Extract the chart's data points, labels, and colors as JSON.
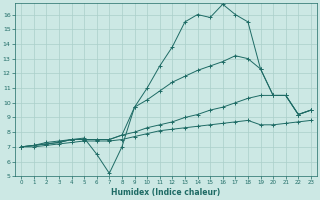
{
  "title": "",
  "xlabel": "Humidex (Indice chaleur)",
  "xlim": [
    -0.5,
    23.5
  ],
  "ylim": [
    5,
    16.8
  ],
  "yticks": [
    5,
    6,
    7,
    8,
    9,
    10,
    11,
    12,
    13,
    14,
    15,
    16
  ],
  "xticks": [
    0,
    1,
    2,
    3,
    4,
    5,
    6,
    7,
    8,
    9,
    10,
    11,
    12,
    13,
    14,
    15,
    16,
    17,
    18,
    19,
    20,
    21,
    22,
    23
  ],
  "bg_color": "#cce8e4",
  "grid_color": "#aacfca",
  "line_color": "#1e6b65",
  "lines": [
    {
      "x": [
        0,
        1,
        2,
        3,
        4,
        5,
        6,
        7,
        8,
        9,
        10,
        11,
        12,
        13,
        14,
        15,
        16,
        17,
        18,
        19,
        20,
        21,
        22,
        23
      ],
      "y": [
        7.0,
        7.1,
        7.3,
        7.4,
        7.5,
        7.6,
        6.5,
        5.2,
        7.0,
        9.7,
        11.0,
        12.5,
        13.8,
        15.5,
        16.0,
        15.8,
        16.7,
        16.0,
        15.5,
        12.3,
        10.5,
        10.5,
        9.2,
        9.5
      ]
    },
    {
      "x": [
        0,
        1,
        2,
        3,
        4,
        5,
        6,
        7,
        8,
        9,
        10,
        11,
        12,
        13,
        14,
        15,
        16,
        17,
        18,
        19,
        20,
        21,
        22,
        23
      ],
      "y": [
        7.0,
        7.1,
        7.2,
        7.3,
        7.5,
        7.5,
        7.5,
        7.5,
        7.8,
        9.7,
        10.2,
        10.8,
        11.4,
        11.8,
        12.2,
        12.5,
        12.8,
        13.2,
        13.0,
        12.3,
        10.5,
        10.5,
        9.2,
        9.5
      ]
    },
    {
      "x": [
        0,
        1,
        2,
        3,
        4,
        5,
        6,
        7,
        8,
        9,
        10,
        11,
        12,
        13,
        14,
        15,
        16,
        17,
        18,
        19,
        20,
        21,
        22,
        23
      ],
      "y": [
        7.0,
        7.1,
        7.2,
        7.3,
        7.5,
        7.5,
        7.5,
        7.5,
        7.8,
        8.0,
        8.3,
        8.5,
        8.7,
        9.0,
        9.2,
        9.5,
        9.7,
        10.0,
        10.3,
        10.5,
        10.5,
        10.5,
        9.2,
        9.5
      ]
    },
    {
      "x": [
        0,
        1,
        2,
        3,
        4,
        5,
        6,
        7,
        8,
        9,
        10,
        11,
        12,
        13,
        14,
        15,
        16,
        17,
        18,
        19,
        20,
        21,
        22,
        23
      ],
      "y": [
        7.0,
        7.0,
        7.1,
        7.2,
        7.3,
        7.4,
        7.4,
        7.4,
        7.5,
        7.7,
        7.9,
        8.1,
        8.2,
        8.3,
        8.4,
        8.5,
        8.6,
        8.7,
        8.8,
        8.5,
        8.5,
        8.6,
        8.7,
        8.8
      ]
    }
  ]
}
